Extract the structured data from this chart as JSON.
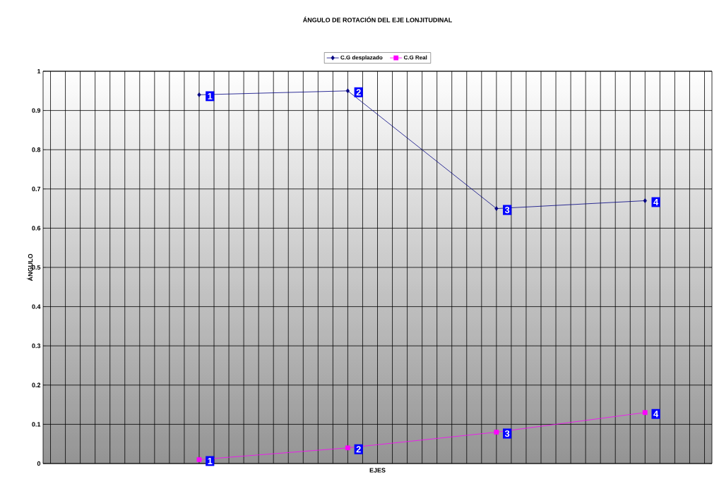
{
  "chart_data": {
    "type": "line",
    "title": "ÁNGULO DE ROTACIÓN DEL EJE LONJITUDINAL",
    "xlabel": "EJES",
    "ylabel": "ÁNGULO",
    "categories": [
      null,
      null,
      null,
      null,
      null,
      null,
      null,
      null,
      null,
      null,
      null,
      null,
      null,
      null,
      null,
      null,
      null,
      null,
      null,
      null,
      null,
      null,
      null,
      null,
      null,
      null,
      null,
      null,
      null,
      null,
      null,
      null,
      null,
      null,
      null,
      null,
      null,
      null,
      null,
      null,
      null,
      null,
      null,
      null,
      null
    ],
    "series": [
      {
        "name": "C.G desplazado",
        "color": "#000080",
        "marker": "diamond",
        "values": [
          null,
          null,
          null,
          null,
          null,
          null,
          null,
          null,
          null,
          null,
          0.94,
          null,
          null,
          null,
          null,
          null,
          null,
          null,
          null,
          null,
          0.95,
          null,
          null,
          null,
          null,
          null,
          null,
          null,
          null,
          null,
          0.65,
          null,
          null,
          null,
          null,
          null,
          null,
          null,
          null,
          null,
          0.67,
          null,
          null,
          null,
          null
        ]
      },
      {
        "name": "C.G Real",
        "color": "#ff00ff",
        "marker": "square",
        "values": [
          null,
          null,
          null,
          null,
          null,
          null,
          null,
          null,
          null,
          null,
          0.01,
          null,
          null,
          null,
          null,
          null,
          null,
          null,
          null,
          null,
          0.04,
          null,
          null,
          null,
          null,
          null,
          null,
          null,
          null,
          null,
          0.08,
          null,
          null,
          null,
          null,
          null,
          null,
          null,
          null,
          null,
          0.13,
          null,
          null,
          null,
          null
        ]
      }
    ],
    "annotations": [
      {
        "text": "1",
        "y": 0.94
      },
      {
        "text": "2",
        "y": 0.95
      },
      {
        "text": "3",
        "y": 0.65
      },
      {
        "text": "4",
        "y": 0.67
      },
      {
        "text": "1",
        "y": 0.01
      },
      {
        "text": "2",
        "y": 0.04
      },
      {
        "text": "3",
        "y": 0.08
      },
      {
        "text": "4",
        "y": 0.13
      }
    ],
    "ylim": [
      0,
      1
    ],
    "yticks": [
      0,
      0.1,
      0.2,
      0.3,
      0.4,
      0.5,
      0.6,
      0.7,
      0.8,
      0.9,
      1
    ],
    "tick_labels": "y",
    "grid": true,
    "legend": "top",
    "line_style": "solid"
  }
}
